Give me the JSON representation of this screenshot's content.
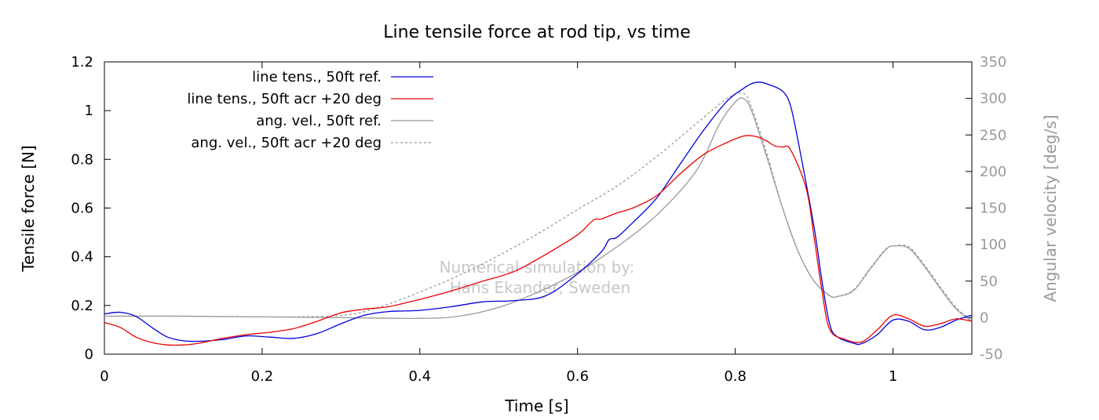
{
  "chart_data": {
    "type": "line",
    "title": "Line tensile force at rod tip, vs time",
    "xlabel": "Time [s]",
    "ylabel": "Tensile force [N]",
    "y2label": "Angular velocity [deg/s]",
    "xlim": [
      0,
      1.1
    ],
    "ylim": [
      0,
      1.2
    ],
    "y2lim": [
      -50,
      350
    ],
    "xticks": [
      "0",
      "0.2",
      "0.4",
      "0.6",
      "0.8",
      "1"
    ],
    "xtick_values": [
      0,
      0.2,
      0.4,
      0.6,
      0.8,
      1.0
    ],
    "yticks": [
      "0",
      "0.2",
      "0.4",
      "0.6",
      "0.8",
      "1",
      "1.2"
    ],
    "ytick_values": [
      0,
      0.2,
      0.4,
      0.6,
      0.8,
      1.0,
      1.2
    ],
    "y2ticks": [
      "-50",
      "0",
      "50",
      "100",
      "150",
      "200",
      "250",
      "300",
      "350"
    ],
    "y2tick_values": [
      -50,
      0,
      50,
      100,
      150,
      200,
      250,
      300,
      350
    ],
    "grid": false,
    "legend_position": "top-left",
    "annotation": [
      "Numerical simulation by:",
      "Hans Ekander, Sweden"
    ],
    "colors": {
      "blue": "#0000dd",
      "red": "#ee0000",
      "gray": "#999999",
      "axis_right": "#999999",
      "watermark": "#c8c8c8"
    },
    "series": [
      {
        "name": "line tens., 50ft ref.",
        "axis": "left",
        "color": "#0000dd",
        "dash": "solid",
        "x": [
          0,
          0.02,
          0.04,
          0.06,
          0.08,
          0.1,
          0.12,
          0.15,
          0.18,
          0.21,
          0.24,
          0.27,
          0.3,
          0.33,
          0.36,
          0.4,
          0.44,
          0.48,
          0.52,
          0.56,
          0.6,
          0.63,
          0.64,
          0.65,
          0.67,
          0.7,
          0.73,
          0.76,
          0.79,
          0.81,
          0.82,
          0.83,
          0.84,
          0.86,
          0.87,
          0.88,
          0.9,
          0.91,
          0.92,
          0.93,
          0.95,
          0.96,
          0.98,
          1.0,
          1.02,
          1.04,
          1.06,
          1.08,
          1.1
        ],
        "y": [
          0.165,
          0.172,
          0.155,
          0.11,
          0.07,
          0.055,
          0.053,
          0.06,
          0.075,
          0.07,
          0.065,
          0.085,
          0.125,
          0.16,
          0.175,
          0.18,
          0.195,
          0.215,
          0.22,
          0.24,
          0.33,
          0.42,
          0.47,
          0.48,
          0.54,
          0.64,
          0.78,
          0.92,
          1.04,
          1.09,
          1.11,
          1.117,
          1.11,
          1.08,
          1.02,
          0.87,
          0.52,
          0.3,
          0.12,
          0.07,
          0.045,
          0.043,
          0.08,
          0.14,
          0.135,
          0.1,
          0.11,
          0.14,
          0.16
        ]
      },
      {
        "name": "line tens., 50ft acr +20 deg",
        "axis": "left",
        "color": "#ee0000",
        "dash": "solid",
        "x": [
          0,
          0.02,
          0.04,
          0.06,
          0.08,
          0.1,
          0.12,
          0.15,
          0.18,
          0.21,
          0.24,
          0.27,
          0.3,
          0.33,
          0.36,
          0.4,
          0.44,
          0.48,
          0.52,
          0.56,
          0.6,
          0.62,
          0.63,
          0.65,
          0.67,
          0.7,
          0.73,
          0.76,
          0.79,
          0.81,
          0.82,
          0.83,
          0.84,
          0.85,
          0.86,
          0.87,
          0.89,
          0.9,
          0.91,
          0.92,
          0.94,
          0.96,
          0.98,
          1.0,
          1.02,
          1.04,
          1.06,
          1.08,
          1.1
        ],
        "y": [
          0.13,
          0.11,
          0.07,
          0.048,
          0.038,
          0.038,
          0.045,
          0.065,
          0.08,
          0.09,
          0.105,
          0.135,
          0.17,
          0.185,
          0.195,
          0.225,
          0.26,
          0.3,
          0.34,
          0.41,
          0.49,
          0.55,
          0.555,
          0.58,
          0.6,
          0.65,
          0.74,
          0.82,
          0.87,
          0.895,
          0.897,
          0.89,
          0.875,
          0.855,
          0.85,
          0.84,
          0.68,
          0.48,
          0.26,
          0.1,
          0.06,
          0.05,
          0.1,
          0.16,
          0.145,
          0.115,
          0.125,
          0.145,
          0.135
        ]
      },
      {
        "name": "ang. vel., 50ft ref.",
        "axis": "right",
        "color": "#999999",
        "dash": "solid",
        "x": [
          0,
          0.1,
          0.2,
          0.3,
          0.4,
          0.45,
          0.5,
          0.55,
          0.6,
          0.65,
          0.7,
          0.75,
          0.78,
          0.8,
          0.81,
          0.82,
          0.84,
          0.86,
          0.88,
          0.9,
          0.92,
          0.93,
          0.95,
          0.97,
          0.99,
          1.0,
          1.02,
          1.04,
          1.06,
          1.08,
          1.1
        ],
        "y": [
          2,
          2,
          1,
          0,
          -1,
          2,
          14,
          35,
          62,
          97,
          140,
          200,
          265,
          295,
          300,
          285,
          220,
          150,
          90,
          50,
          30,
          29,
          37,
          65,
          92,
          98,
          95,
          70,
          40,
          12,
          -5
        ]
      },
      {
        "name": "ang. vel., 50ft acr +20 deg",
        "axis": "right",
        "color": "#999999",
        "dash": "dashed",
        "x": [
          0,
          0.1,
          0.2,
          0.3,
          0.35,
          0.4,
          0.45,
          0.5,
          0.55,
          0.6,
          0.65,
          0.7,
          0.75,
          0.79,
          0.81,
          0.82,
          0.84,
          0.86,
          0.88,
          0.9,
          0.92,
          0.93,
          0.95,
          0.97,
          0.99,
          1.0,
          1.02,
          1.04,
          1.06,
          1.08,
          1.1
        ],
        "y": [
          2,
          2,
          1,
          3,
          15,
          35,
          58,
          85,
          115,
          148,
          180,
          220,
          265,
          300,
          307,
          290,
          225,
          150,
          90,
          50,
          30,
          29,
          38,
          66,
          93,
          98,
          97,
          72,
          42,
          14,
          -4
        ]
      }
    ]
  }
}
